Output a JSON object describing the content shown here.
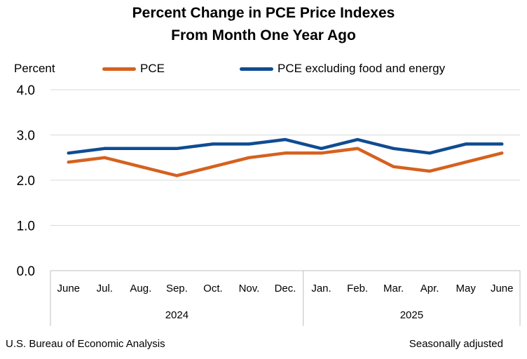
{
  "chart_data": {
    "type": "line",
    "title_line1": "Percent Change in PCE Price Indexes",
    "title_line2": "From Month One Year Ago",
    "ylabel": "Percent",
    "ylim": [
      0,
      4
    ],
    "yticks": [
      "0.0",
      "1.0",
      "2.0",
      "3.0",
      "4.0"
    ],
    "categories": [
      "June",
      "Jul.",
      "Aug.",
      "Sep.",
      "Oct.",
      "Nov.",
      "Dec.",
      "Jan.",
      "Feb.",
      "Mar.",
      "Apr.",
      "May",
      "June"
    ],
    "year_groups": [
      {
        "label": "2024",
        "count": 7
      },
      {
        "label": "2025",
        "count": 6
      }
    ],
    "series": [
      {
        "name": "PCE",
        "color": "#d5611f",
        "values": [
          2.4,
          2.5,
          2.3,
          2.1,
          2.3,
          2.5,
          2.6,
          2.6,
          2.7,
          2.3,
          2.2,
          2.4,
          2.6
        ]
      },
      {
        "name": "PCE excluding food and energy",
        "color": "#0f4c92",
        "values": [
          2.6,
          2.7,
          2.7,
          2.7,
          2.8,
          2.8,
          2.9,
          2.7,
          2.9,
          2.7,
          2.6,
          2.8,
          2.8
        ]
      }
    ],
    "grid": "horizontal",
    "legend": "top"
  },
  "footer": {
    "source": "U.S. Bureau of Economic Analysis",
    "note": "Seasonally adjusted"
  }
}
